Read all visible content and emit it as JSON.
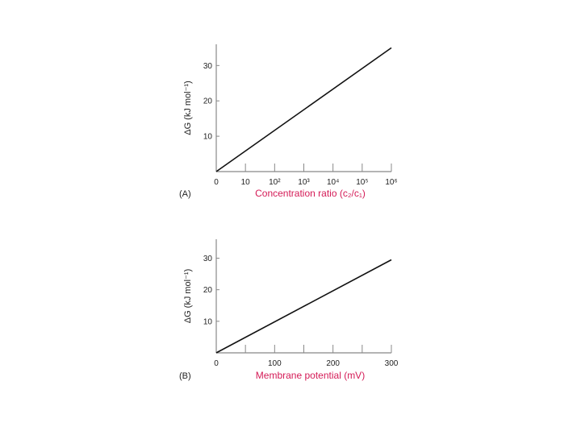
{
  "colors": {
    "axis": "#888888",
    "line": "#111111",
    "xlabel": "#d41a56",
    "text": "#222222"
  },
  "chart_data": [
    {
      "type": "line",
      "panel_label": "(A)",
      "ylabel": "ΔG (kJ mol⁻¹)",
      "xlabel": "Concentration ratio (c₂/c₁)",
      "x_scale": "log",
      "xlim": [
        1,
        1000000
      ],
      "ylim": [
        0,
        36
      ],
      "x_ticks": [
        {
          "value": 1,
          "label": "0"
        },
        {
          "value": 10,
          "label": "10"
        },
        {
          "value": 100,
          "label": "10²"
        },
        {
          "value": 1000,
          "label": "10³"
        },
        {
          "value": 10000,
          "label": "10⁴"
        },
        {
          "value": 100000,
          "label": "10⁵"
        },
        {
          "value": 1000000,
          "label": "10⁶"
        }
      ],
      "y_ticks": [
        {
          "value": 10,
          "label": "10"
        },
        {
          "value": 20,
          "label": "20"
        },
        {
          "value": 30,
          "label": "30"
        }
      ],
      "series": [
        {
          "x": [
            1,
            1000000
          ],
          "y": [
            0,
            35
          ]
        }
      ]
    },
    {
      "type": "line",
      "panel_label": "(B)",
      "ylabel": "ΔG (kJ mol⁻¹)",
      "xlabel": "Membrane potential (mV)",
      "x_scale": "linear",
      "xlim": [
        0,
        300
      ],
      "ylim": [
        0,
        36
      ],
      "x_ticks": [
        {
          "value": 0,
          "label": "0"
        },
        {
          "value": 50,
          "label": ""
        },
        {
          "value": 100,
          "label": "100"
        },
        {
          "value": 150,
          "label": ""
        },
        {
          "value": 200,
          "label": "200"
        },
        {
          "value": 250,
          "label": ""
        },
        {
          "value": 300,
          "label": "300"
        }
      ],
      "y_ticks": [
        {
          "value": 10,
          "label": "10"
        },
        {
          "value": 20,
          "label": "20"
        },
        {
          "value": 30,
          "label": "30"
        }
      ],
      "series": [
        {
          "x": [
            0,
            300
          ],
          "y": [
            0,
            29.5
          ]
        }
      ]
    }
  ]
}
